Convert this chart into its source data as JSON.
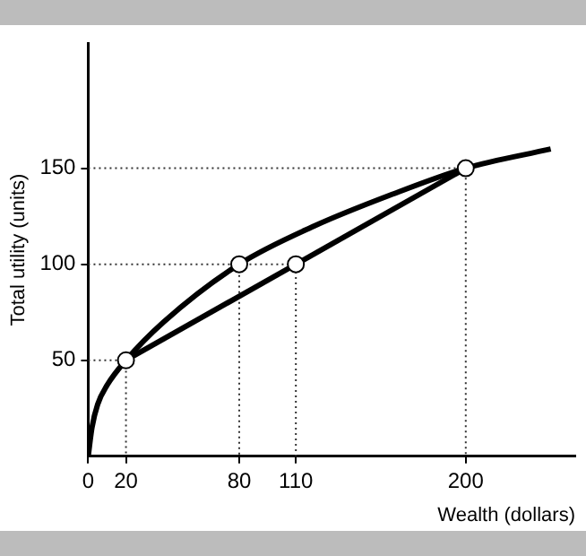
{
  "chart_data": {
    "type": "line",
    "xlabel": "Wealth (dollars)",
    "ylabel": "Total utility (units)",
    "xlim": [
      0,
      258
    ],
    "ylim": [
      0,
      215
    ],
    "xticks": [
      0,
      20,
      80,
      110,
      200
    ],
    "yticks": [
      50,
      100,
      150
    ],
    "grid": false,
    "legend": false,
    "marker": "none",
    "series": [
      {
        "color": "#000000",
        "x": [
          0,
          2,
          5,
          10,
          20,
          40,
          80,
          120,
          160,
          200,
          245
        ],
        "values": [
          0,
          15,
          27,
          37,
          50,
          70,
          100,
          120,
          136,
          150,
          160
        ]
      },
      {
        "color": "#000000",
        "x": [
          20,
          200
        ],
        "values": [
          50,
          150
        ]
      },
      {
        "type": "line",
        "color": "#333333",
        "line_style": "dotted",
        "x": [
          0,
          20,
          20
        ],
        "values": [
          50,
          50,
          0
        ]
      },
      {
        "type": "line",
        "color": "#333333",
        "line_style": "dotted",
        "x": [
          0,
          110,
          110
        ],
        "values": [
          100,
          100,
          0
        ]
      },
      {
        "type": "line",
        "color": "#333333",
        "line_style": "dotted",
        "x": [
          80,
          80
        ],
        "values": [
          100,
          0
        ]
      },
      {
        "type": "line",
        "color": "#333333",
        "line_style": "dotted",
        "x": [
          0,
          200,
          200
        ],
        "values": [
          150,
          150,
          0
        ]
      },
      {
        "type": "scatter",
        "color": "#ffffff",
        "marker": "circle",
        "x": [
          20,
          80,
          110,
          200
        ],
        "values": [
          50,
          100,
          100,
          150
        ]
      }
    ]
  }
}
